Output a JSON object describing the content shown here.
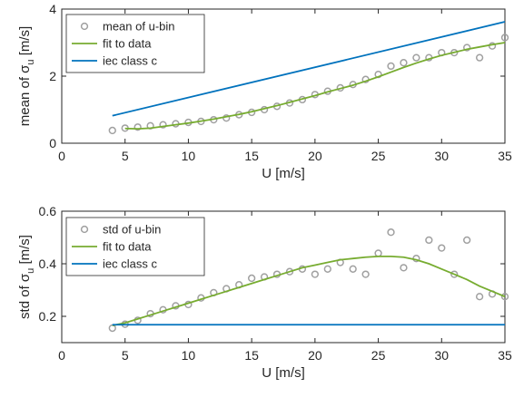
{
  "chart_data": [
    {
      "type": "line",
      "xlabel": "U [m/s]",
      "ylabel_main": "mean of σ",
      "ylabel_sub": "u",
      "ylabel_unit": "[m/s]",
      "xlim": [
        0,
        35
      ],
      "ylim": [
        0,
        4
      ],
      "xticks": [
        0,
        5,
        10,
        15,
        20,
        25,
        30,
        35
      ],
      "yticks": [
        0,
        2,
        4
      ],
      "grid": false,
      "legend_position": "top-left",
      "series": [
        {
          "name": "mean of u-bin",
          "kind": "scatter",
          "color": "#a0a0a0",
          "x": [
            4,
            5,
            6,
            7,
            8,
            9,
            10,
            11,
            12,
            13,
            14,
            15,
            16,
            17,
            18,
            19,
            20,
            21,
            22,
            23,
            24,
            25,
            26,
            27,
            28,
            29,
            30,
            31,
            32,
            33,
            34,
            35
          ],
          "y": [
            0.38,
            0.45,
            0.48,
            0.52,
            0.55,
            0.58,
            0.62,
            0.65,
            0.7,
            0.75,
            0.85,
            0.92,
            1.0,
            1.1,
            1.2,
            1.3,
            1.45,
            1.55,
            1.65,
            1.75,
            1.9,
            2.05,
            2.3,
            2.4,
            2.55,
            2.55,
            2.7,
            2.7,
            2.85,
            2.55,
            2.9,
            3.15
          ]
        },
        {
          "name": "fit to data",
          "kind": "line",
          "color": "#77ac30",
          "x": [
            5,
            6,
            7,
            8,
            9,
            10,
            11,
            12,
            13,
            14,
            15,
            16,
            17,
            18,
            19,
            20,
            21,
            22,
            23,
            24,
            25,
            26,
            27,
            28,
            29,
            30,
            31,
            32,
            33,
            34,
            35
          ],
          "y": [
            0.44,
            0.43,
            0.45,
            0.5,
            0.55,
            0.6,
            0.66,
            0.72,
            0.79,
            0.86,
            0.94,
            1.03,
            1.12,
            1.22,
            1.32,
            1.42,
            1.53,
            1.63,
            1.73,
            1.85,
            1.98,
            2.12,
            2.26,
            2.39,
            2.51,
            2.62,
            2.71,
            2.8,
            2.87,
            2.94,
            3.0
          ]
        },
        {
          "name": "iec class c",
          "kind": "line",
          "color": "#0072bd",
          "x": [
            4,
            35
          ],
          "y": [
            0.82,
            3.62
          ]
        }
      ]
    },
    {
      "type": "line",
      "xlabel": "U [m/s]",
      "ylabel_main": "std of σ",
      "ylabel_sub": "u",
      "ylabel_unit": "[m/s]",
      "xlim": [
        0,
        35
      ],
      "ylim": [
        0.1,
        0.6
      ],
      "xticks": [
        0,
        5,
        10,
        15,
        20,
        25,
        30,
        35
      ],
      "yticks": [
        0.2,
        0.4,
        0.6
      ],
      "grid": false,
      "legend_position": "top-left",
      "series": [
        {
          "name": "std of u-bin",
          "kind": "scatter",
          "color": "#a0a0a0",
          "x": [
            4,
            5,
            6,
            7,
            8,
            9,
            10,
            11,
            12,
            13,
            14,
            15,
            16,
            17,
            18,
            19,
            20,
            21,
            22,
            23,
            24,
            25,
            26,
            27,
            28,
            29,
            30,
            31,
            32,
            33,
            34,
            35
          ],
          "y": [
            0.155,
            0.17,
            0.185,
            0.21,
            0.225,
            0.24,
            0.245,
            0.27,
            0.29,
            0.305,
            0.32,
            0.345,
            0.35,
            0.36,
            0.37,
            0.38,
            0.36,
            0.38,
            0.405,
            0.38,
            0.36,
            0.44,
            0.52,
            0.385,
            0.42,
            0.49,
            0.46,
            0.36,
            0.49,
            0.275,
            0.285,
            0.275
          ]
        },
        {
          "name": "fit to data",
          "kind": "line",
          "color": "#77ac30",
          "x": [
            4,
            5,
            6,
            7,
            8,
            9,
            10,
            11,
            12,
            13,
            14,
            15,
            16,
            17,
            18,
            19,
            20,
            21,
            22,
            23,
            24,
            25,
            26,
            27,
            28,
            29,
            30,
            31,
            32,
            33,
            34,
            35
          ],
          "y": [
            0.165,
            0.175,
            0.19,
            0.205,
            0.22,
            0.235,
            0.25,
            0.265,
            0.28,
            0.295,
            0.31,
            0.325,
            0.34,
            0.355,
            0.37,
            0.385,
            0.395,
            0.405,
            0.415,
            0.42,
            0.425,
            0.428,
            0.428,
            0.425,
            0.415,
            0.4,
            0.38,
            0.36,
            0.34,
            0.315,
            0.295,
            0.275
          ]
        },
        {
          "name": "iec class c",
          "kind": "line",
          "color": "#0072bd",
          "x": [
            4,
            35
          ],
          "y": [
            0.168,
            0.168
          ]
        }
      ]
    }
  ]
}
